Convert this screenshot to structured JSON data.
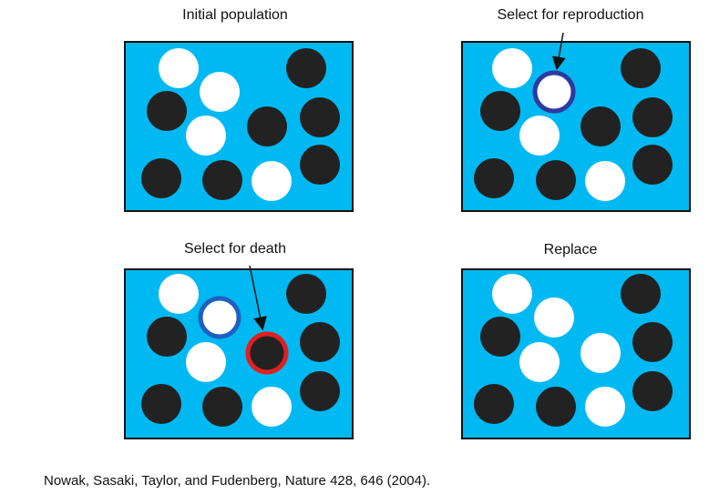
{
  "panels": [
    {
      "title": "Initial population"
    },
    {
      "title": "Select for reproduction"
    },
    {
      "title": "Select for death"
    },
    {
      "title": "Replace"
    }
  ],
  "caption": "Nowak, Sasaki, Taylor, and Fudenberg, Nature 428, 646 (2004).",
  "colors": {
    "background": "#00B9F2",
    "border": "#111111",
    "black_individual": "#222222",
    "white_individual": "#ffffff",
    "reproduction_ring": "#2E3A9F",
    "reproduction_ring_bottom": "#1F5FBF",
    "death_ring": "#E02020"
  }
}
